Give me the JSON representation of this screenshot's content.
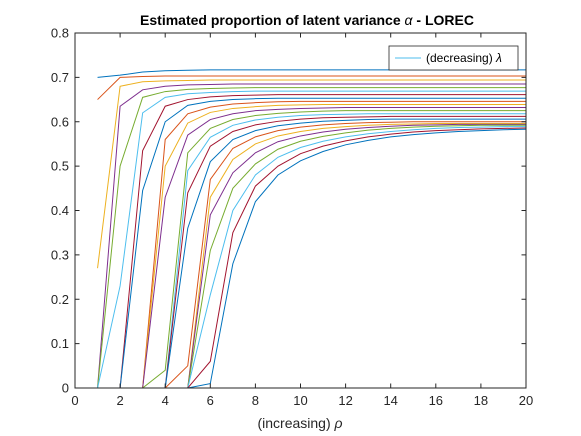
{
  "chart_data": {
    "type": "line",
    "title": "Estimated proportion of latent variance",
    "title_symbol": "α",
    "title_suffix": " - LOREC",
    "xlabel": "(increasing)",
    "xlabel_symbol": "ρ",
    "ylabel": "",
    "xlim": [
      0,
      20
    ],
    "ylim": [
      0,
      0.8
    ],
    "x_ticks": [
      "0",
      "2",
      "4",
      "6",
      "8",
      "10",
      "12",
      "14",
      "16",
      "18",
      "20"
    ],
    "y_ticks": [
      "0",
      "0.1",
      "0.2",
      "0.3",
      "0.4",
      "0.5",
      "0.6",
      "0.7",
      "0.8"
    ],
    "grid": false,
    "legend": {
      "placement": "top-right",
      "label": "(decreasing)",
      "symbol": "λ"
    },
    "colors": [
      "#0072BD",
      "#D95319",
      "#EDB120",
      "#7E2F8E",
      "#77AC30",
      "#4DBEEE",
      "#A2142F"
    ],
    "x": [
      1,
      2,
      3,
      4,
      5,
      6,
      7,
      8,
      9,
      10,
      11,
      12,
      13,
      14,
      15,
      16,
      17,
      18,
      19,
      20
    ],
    "series": [
      {
        "values": [
          0.7,
          0.705,
          0.712,
          0.715,
          0.716,
          0.717,
          0.717,
          0.717,
          0.717,
          0.717,
          0.717,
          0.717,
          0.717,
          0.717,
          0.717,
          0.717,
          0.717,
          0.717,
          0.717,
          0.717
        ]
      },
      {
        "values": [
          0.65,
          0.7,
          0.702,
          0.703,
          0.703,
          0.703,
          0.703,
          0.703,
          0.703,
          0.703,
          0.703,
          0.703,
          0.703,
          0.703,
          0.703,
          0.703,
          0.703,
          0.703,
          0.703,
          0.703
        ]
      },
      {
        "values": [
          0.27,
          0.68,
          0.69,
          0.692,
          0.693,
          0.694,
          0.694,
          0.694,
          0.694,
          0.694,
          0.694,
          0.694,
          0.694,
          0.694,
          0.694,
          0.694,
          0.694,
          0.694,
          0.694,
          0.694
        ]
      },
      {
        "values": [
          0.0,
          0.635,
          0.672,
          0.68,
          0.683,
          0.684,
          0.685,
          0.685,
          0.685,
          0.685,
          0.685,
          0.685,
          0.685,
          0.685,
          0.685,
          0.685,
          0.685,
          0.685,
          0.685,
          0.685
        ]
      },
      {
        "values": [
          0.0,
          0.5,
          0.655,
          0.668,
          0.673,
          0.675,
          0.676,
          0.677,
          0.677,
          0.677,
          0.677,
          0.677,
          0.677,
          0.677,
          0.677,
          0.677,
          0.677,
          0.677,
          0.677,
          0.677
        ]
      },
      {
        "values": [
          0.0,
          0.23,
          0.62,
          0.655,
          0.663,
          0.666,
          0.668,
          0.669,
          0.669,
          0.669,
          0.669,
          0.669,
          0.669,
          0.669,
          0.669,
          0.669,
          0.669,
          0.669,
          0.669,
          0.669
        ]
      },
      {
        "values": [
          0.0,
          0.0,
          0.535,
          0.635,
          0.65,
          0.656,
          0.659,
          0.66,
          0.661,
          0.661,
          0.661,
          0.661,
          0.661,
          0.661,
          0.661,
          0.661,
          0.661,
          0.661,
          0.661,
          0.661
        ]
      },
      {
        "values": [
          0.0,
          0.0,
          0.445,
          0.6,
          0.637,
          0.646,
          0.65,
          0.652,
          0.653,
          0.653,
          0.653,
          0.653,
          0.653,
          0.653,
          0.653,
          0.653,
          0.653,
          0.653,
          0.653,
          0.653
        ]
      },
      {
        "values": [
          0.0,
          0.0,
          0.0,
          0.56,
          0.618,
          0.633,
          0.64,
          0.643,
          0.645,
          0.646,
          0.646,
          0.646,
          0.646,
          0.646,
          0.646,
          0.646,
          0.646,
          0.646,
          0.646,
          0.646
        ]
      },
      {
        "values": [
          0.0,
          0.0,
          0.0,
          0.5,
          0.597,
          0.621,
          0.63,
          0.634,
          0.637,
          0.638,
          0.639,
          0.639,
          0.639,
          0.639,
          0.639,
          0.639,
          0.639,
          0.639,
          0.639,
          0.639
        ]
      },
      {
        "values": [
          0.0,
          0.0,
          0.0,
          0.43,
          0.57,
          0.605,
          0.618,
          0.625,
          0.628,
          0.63,
          0.631,
          0.632,
          0.632,
          0.632,
          0.632,
          0.632,
          0.632,
          0.632,
          0.632,
          0.632
        ]
      },
      {
        "values": [
          0.0,
          0.0,
          0.0,
          0.04,
          0.53,
          0.585,
          0.605,
          0.614,
          0.619,
          0.622,
          0.624,
          0.625,
          0.625,
          0.625,
          0.625,
          0.625,
          0.625,
          0.625,
          0.625,
          0.625
        ]
      },
      {
        "values": [
          0.0,
          0.0,
          0.0,
          0.0,
          0.49,
          0.565,
          0.592,
          0.604,
          0.61,
          0.614,
          0.616,
          0.617,
          0.618,
          0.618,
          0.618,
          0.618,
          0.618,
          0.618,
          0.618,
          0.618
        ]
      },
      {
        "values": [
          0.0,
          0.0,
          0.0,
          0.0,
          0.44,
          0.545,
          0.578,
          0.593,
          0.601,
          0.606,
          0.609,
          0.61,
          0.611,
          0.612,
          0.612,
          0.612,
          0.612,
          0.612,
          0.612,
          0.612
        ]
      },
      {
        "values": [
          0.0,
          0.0,
          0.0,
          0.0,
          0.36,
          0.51,
          0.56,
          0.58,
          0.591,
          0.597,
          0.601,
          0.603,
          0.605,
          0.606,
          0.606,
          0.606,
          0.606,
          0.606,
          0.606,
          0.606
        ]
      },
      {
        "values": [
          0.0,
          0.0,
          0.0,
          0.0,
          0.05,
          0.47,
          0.54,
          0.566,
          0.58,
          0.588,
          0.593,
          0.596,
          0.598,
          0.599,
          0.6,
          0.6,
          0.6,
          0.6,
          0.6,
          0.6
        ]
      },
      {
        "values": [
          0.0,
          0.0,
          0.0,
          0.0,
          0.0,
          0.43,
          0.515,
          0.55,
          0.568,
          0.578,
          0.585,
          0.589,
          0.592,
          0.594,
          0.595,
          0.596,
          0.596,
          0.596,
          0.596,
          0.596
        ]
      },
      {
        "values": [
          0.0,
          0.0,
          0.0,
          0.0,
          0.0,
          0.39,
          0.485,
          0.53,
          0.555,
          0.568,
          0.577,
          0.583,
          0.587,
          0.59,
          0.592,
          0.593,
          0.594,
          0.594,
          0.594,
          0.594
        ]
      },
      {
        "values": [
          0.0,
          0.0,
          0.0,
          0.0,
          0.0,
          0.31,
          0.45,
          0.505,
          0.538,
          0.556,
          0.567,
          0.575,
          0.581,
          0.585,
          0.588,
          0.59,
          0.591,
          0.592,
          0.592,
          0.592
        ]
      },
      {
        "values": [
          0.0,
          0.0,
          0.0,
          0.0,
          0.0,
          0.21,
          0.4,
          0.48,
          0.52,
          0.542,
          0.556,
          0.566,
          0.573,
          0.578,
          0.582,
          0.585,
          0.587,
          0.588,
          0.589,
          0.589
        ]
      },
      {
        "values": [
          0.0,
          0.0,
          0.0,
          0.0,
          0.0,
          0.06,
          0.35,
          0.455,
          0.5,
          0.528,
          0.545,
          0.557,
          0.566,
          0.572,
          0.577,
          0.58,
          0.582,
          0.584,
          0.585,
          0.586
        ]
      },
      {
        "values": [
          0.0,
          0.0,
          0.0,
          0.0,
          0.0,
          0.01,
          0.28,
          0.42,
          0.48,
          0.512,
          0.533,
          0.548,
          0.558,
          0.566,
          0.571,
          0.575,
          0.578,
          0.58,
          0.582,
          0.583
        ]
      }
    ]
  }
}
